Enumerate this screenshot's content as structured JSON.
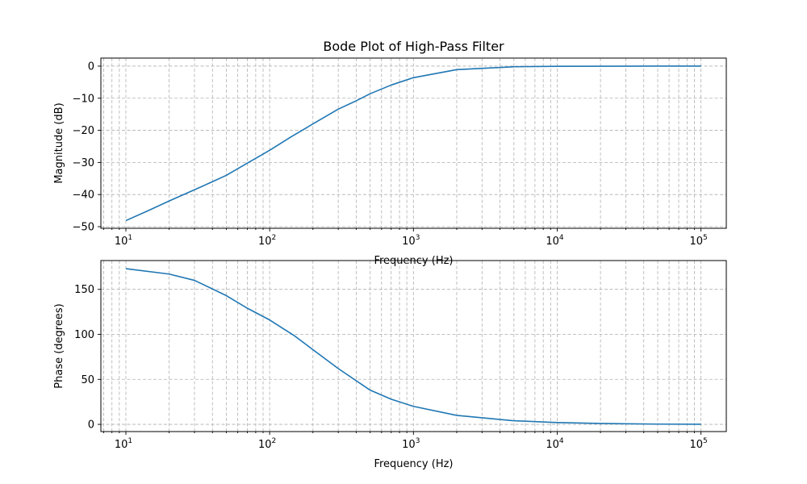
{
  "figure": {
    "title": "Bode Plot of High-Pass Filter"
  },
  "chart_data": [
    {
      "type": "line",
      "title": "Bode Plot of High-Pass Filter",
      "xlabel": "Frequency (Hz)",
      "ylabel": "Magnitude (dB)",
      "xscale": "log",
      "xlim": [
        6.7,
        150000
      ],
      "ylim": [
        -50.5,
        2.5
      ],
      "xticks": [
        10,
        100,
        1000,
        10000,
        100000
      ],
      "xtick_labels": [
        [
          "10",
          "1"
        ],
        [
          "10",
          "2"
        ],
        [
          "10",
          "3"
        ],
        [
          "10",
          "4"
        ],
        [
          "10",
          "5"
        ]
      ],
      "yticks": [
        0,
        -10,
        -20,
        -30,
        -40,
        -50
      ],
      "ytick_labels": [
        "0",
        "−10",
        "−20",
        "−30",
        "−40",
        "−50"
      ],
      "grid": true,
      "grid_which": "both",
      "series": [
        {
          "color": "#1f77b4",
          "x": [
            10,
            14,
            20,
            30,
            40,
            50,
            70,
            100,
            140,
            200,
            300,
            400,
            500,
            700,
            1000,
            2000,
            5000,
            10000,
            50000,
            100000
          ],
          "y": [
            -48.1,
            -45.2,
            -42.0,
            -38.5,
            -36.0,
            -34.0,
            -30.2,
            -26.2,
            -22.1,
            -18.0,
            -13.4,
            -10.8,
            -8.6,
            -5.9,
            -3.6,
            -1.1,
            -0.2,
            -0.05,
            0,
            0
          ]
        }
      ]
    },
    {
      "type": "line",
      "title": "",
      "xlabel": "Frequency (Hz)",
      "ylabel": "Phase (degrees)",
      "xscale": "log",
      "xlim": [
        6.7,
        150000
      ],
      "ylim": [
        -8,
        182
      ],
      "xticks": [
        10,
        100,
        1000,
        10000,
        100000
      ],
      "xtick_labels": [
        [
          "10",
          "1"
        ],
        [
          "10",
          "2"
        ],
        [
          "10",
          "3"
        ],
        [
          "10",
          "4"
        ],
        [
          "10",
          "5"
        ]
      ],
      "yticks": [
        0,
        50,
        100,
        150
      ],
      "ytick_labels": [
        "0",
        "50",
        "100",
        "150"
      ],
      "grid": true,
      "grid_which": "both",
      "series": [
        {
          "color": "#1f77b4",
          "x": [
            10,
            20,
            30,
            50,
            70,
            100,
            150,
            200,
            300,
            500,
            700,
            1000,
            2000,
            5000,
            10000,
            20000,
            50000,
            100000
          ],
          "y": [
            173,
            167,
            160,
            143,
            129,
            116,
            98,
            83,
            62,
            38,
            28,
            20,
            10,
            4,
            2,
            1,
            0.3,
            0.1
          ]
        }
      ]
    }
  ]
}
